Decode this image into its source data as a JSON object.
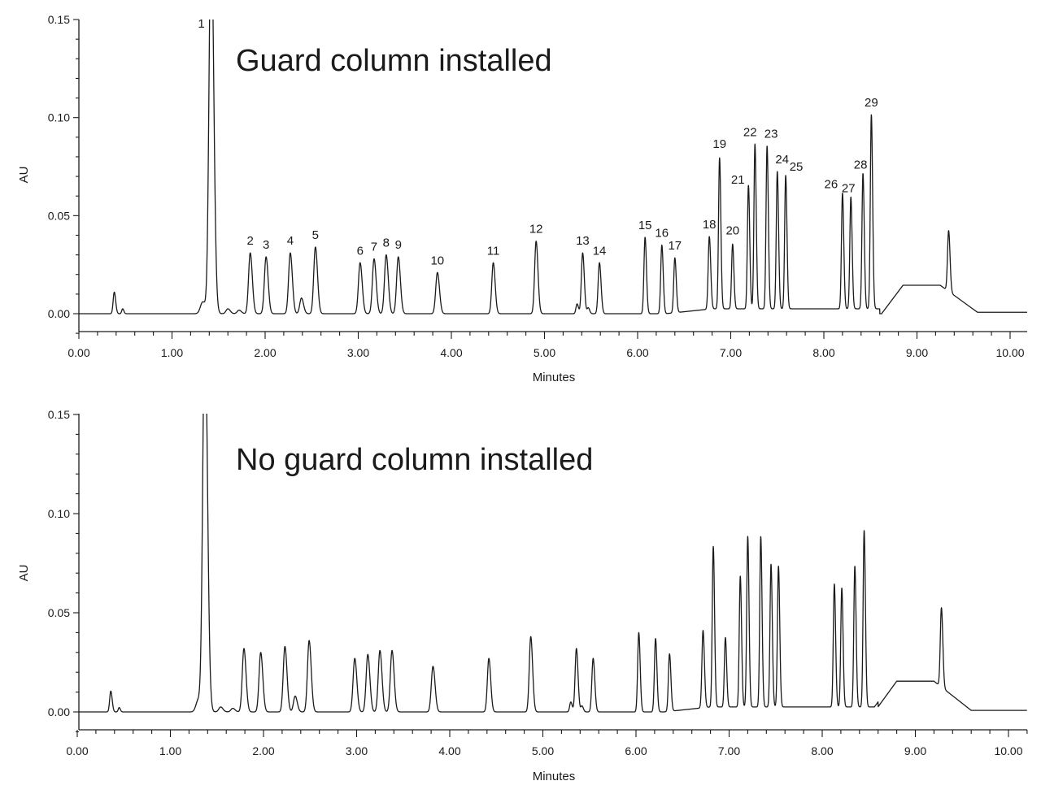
{
  "chart_data": [
    {
      "type": "line",
      "title": "Guard column installed",
      "xlabel": "Minutes",
      "ylabel": "AU",
      "xlim": [
        0,
        10.2
      ],
      "ylim": [
        -0.01,
        0.15
      ],
      "x_tick_labels": [
        "0.00",
        "1.00",
        "2.00",
        "3.00",
        "4.00",
        "5.00",
        "6.00",
        "7.00",
        "8.00",
        "9.00",
        "10.00"
      ],
      "y_tick_labels": [
        "0.00",
        "0.05",
        "0.10",
        "0.15"
      ],
      "grid": false,
      "peaks": [
        {
          "label": "",
          "rt": 0.38,
          "height": 0.011,
          "width": 0.012
        },
        {
          "label": "",
          "rt": 0.47,
          "height": 0.0025,
          "width": 0.01
        },
        {
          "label": "",
          "rt": 1.33,
          "height": 0.006,
          "width": 0.025
        },
        {
          "label": "1",
          "rt": 1.42,
          "height": 0.2,
          "width": 0.022
        },
        {
          "label": "",
          "rt": 1.6,
          "height": 0.0025,
          "width": 0.02
        },
        {
          "label": "",
          "rt": 1.72,
          "height": 0.0018,
          "width": 0.02
        },
        {
          "label": "2",
          "rt": 1.84,
          "height": 0.031,
          "width": 0.018
        },
        {
          "label": "3",
          "rt": 2.01,
          "height": 0.029,
          "width": 0.018
        },
        {
          "label": "4",
          "rt": 2.27,
          "height": 0.031,
          "width": 0.018
        },
        {
          "label": "",
          "rt": 2.39,
          "height": 0.008,
          "width": 0.018
        },
        {
          "label": "5",
          "rt": 2.54,
          "height": 0.034,
          "width": 0.018
        },
        {
          "label": "6",
          "rt": 3.02,
          "height": 0.026,
          "width": 0.018
        },
        {
          "label": "7",
          "rt": 3.17,
          "height": 0.028,
          "width": 0.018
        },
        {
          "label": "8",
          "rt": 3.3,
          "height": 0.03,
          "width": 0.018
        },
        {
          "label": "9",
          "rt": 3.43,
          "height": 0.029,
          "width": 0.018
        },
        {
          "label": "10",
          "rt": 3.85,
          "height": 0.021,
          "width": 0.018
        },
        {
          "label": "11",
          "rt": 4.45,
          "height": 0.026,
          "width": 0.016
        },
        {
          "label": "12",
          "rt": 4.91,
          "height": 0.037,
          "width": 0.016
        },
        {
          "label": "",
          "rt": 5.35,
          "height": 0.005,
          "width": 0.012
        },
        {
          "label": "13",
          "rt": 5.41,
          "height": 0.031,
          "width": 0.014
        },
        {
          "label": "",
          "rt": 5.47,
          "height": 0.003,
          "width": 0.012
        },
        {
          "label": "14",
          "rt": 5.59,
          "height": 0.026,
          "width": 0.014
        },
        {
          "label": "15",
          "rt": 6.08,
          "height": 0.039,
          "width": 0.012
        },
        {
          "label": "16",
          "rt": 6.26,
          "height": 0.035,
          "width": 0.012
        },
        {
          "label": "17",
          "rt": 6.4,
          "height": 0.028,
          "width": 0.012
        },
        {
          "label": "18",
          "rt": 6.77,
          "height": 0.037,
          "width": 0.012
        },
        {
          "label": "19",
          "rt": 6.88,
          "height": 0.077,
          "width": 0.011
        },
        {
          "label": "20",
          "rt": 7.02,
          "height": 0.033,
          "width": 0.011
        },
        {
          "label": "21",
          "rt": 7.19,
          "height": 0.063,
          "width": 0.011
        },
        {
          "label": "22",
          "rt": 7.26,
          "height": 0.084,
          "width": 0.011
        },
        {
          "label": "23",
          "rt": 7.39,
          "height": 0.083,
          "width": 0.011
        },
        {
          "label": "24",
          "rt": 7.5,
          "height": 0.07,
          "width": 0.011
        },
        {
          "label": "25",
          "rt": 7.59,
          "height": 0.068,
          "width": 0.011
        },
        {
          "label": "26",
          "rt": 8.2,
          "height": 0.059,
          "width": 0.011
        },
        {
          "label": "27",
          "rt": 8.29,
          "height": 0.057,
          "width": 0.011
        },
        {
          "label": "28",
          "rt": 8.42,
          "height": 0.069,
          "width": 0.011
        },
        {
          "label": "29",
          "rt": 8.51,
          "height": 0.099,
          "width": 0.011
        },
        {
          "label": "",
          "rt": 9.34,
          "height": 0.031,
          "width": 0.012
        }
      ]
    },
    {
      "type": "line",
      "title": "No guard column installed",
      "xlabel": "Minutes",
      "ylabel": "AU",
      "xlim": [
        0,
        10.2
      ],
      "ylim": [
        -0.01,
        0.15
      ],
      "x_tick_labels": [
        "0.00",
        "1.00",
        "2.00",
        "3.00",
        "4.00",
        "5.00",
        "6.00",
        "7.00",
        "8.00",
        "9.00",
        "10.00"
      ],
      "y_tick_labels": [
        "0.00",
        "0.05",
        "0.10",
        "0.15"
      ],
      "grid": false,
      "peaks": [
        {
          "label": "",
          "rt": 0.36,
          "height": 0.0105,
          "width": 0.012
        },
        {
          "label": "",
          "rt": 0.45,
          "height": 0.0022,
          "width": 0.01
        },
        {
          "label": "",
          "rt": 1.3,
          "height": 0.006,
          "width": 0.025
        },
        {
          "label": "",
          "rt": 1.37,
          "height": 0.2,
          "width": 0.022
        },
        {
          "label": "",
          "rt": 1.54,
          "height": 0.0025,
          "width": 0.02
        },
        {
          "label": "",
          "rt": 1.67,
          "height": 0.0018,
          "width": 0.02
        },
        {
          "label": "",
          "rt": 1.79,
          "height": 0.032,
          "width": 0.018
        },
        {
          "label": "",
          "rt": 1.97,
          "height": 0.03,
          "width": 0.018
        },
        {
          "label": "",
          "rt": 2.23,
          "height": 0.033,
          "width": 0.018
        },
        {
          "label": "",
          "rt": 2.34,
          "height": 0.008,
          "width": 0.018
        },
        {
          "label": "",
          "rt": 2.49,
          "height": 0.036,
          "width": 0.018
        },
        {
          "label": "",
          "rt": 2.98,
          "height": 0.027,
          "width": 0.018
        },
        {
          "label": "",
          "rt": 3.12,
          "height": 0.029,
          "width": 0.018
        },
        {
          "label": "",
          "rt": 3.25,
          "height": 0.031,
          "width": 0.018
        },
        {
          "label": "",
          "rt": 3.38,
          "height": 0.031,
          "width": 0.018
        },
        {
          "label": "",
          "rt": 3.82,
          "height": 0.023,
          "width": 0.018
        },
        {
          "label": "",
          "rt": 4.42,
          "height": 0.027,
          "width": 0.016
        },
        {
          "label": "",
          "rt": 4.87,
          "height": 0.038,
          "width": 0.016
        },
        {
          "label": "",
          "rt": 5.3,
          "height": 0.005,
          "width": 0.012
        },
        {
          "label": "",
          "rt": 5.36,
          "height": 0.032,
          "width": 0.014
        },
        {
          "label": "",
          "rt": 5.42,
          "height": 0.003,
          "width": 0.012
        },
        {
          "label": "",
          "rt": 5.54,
          "height": 0.027,
          "width": 0.014
        },
        {
          "label": "",
          "rt": 6.03,
          "height": 0.04,
          "width": 0.012
        },
        {
          "label": "",
          "rt": 6.21,
          "height": 0.037,
          "width": 0.012
        },
        {
          "label": "",
          "rt": 6.36,
          "height": 0.029,
          "width": 0.012
        },
        {
          "label": "",
          "rt": 6.72,
          "height": 0.039,
          "width": 0.012
        },
        {
          "label": "",
          "rt": 6.83,
          "height": 0.081,
          "width": 0.011
        },
        {
          "label": "",
          "rt": 6.96,
          "height": 0.035,
          "width": 0.011
        },
        {
          "label": "",
          "rt": 7.12,
          "height": 0.066,
          "width": 0.011
        },
        {
          "label": "",
          "rt": 7.2,
          "height": 0.086,
          "width": 0.011
        },
        {
          "label": "",
          "rt": 7.34,
          "height": 0.086,
          "width": 0.011
        },
        {
          "label": "",
          "rt": 7.45,
          "height": 0.072,
          "width": 0.011
        },
        {
          "label": "",
          "rt": 7.53,
          "height": 0.071,
          "width": 0.011
        },
        {
          "label": "",
          "rt": 8.13,
          "height": 0.062,
          "width": 0.011
        },
        {
          "label": "",
          "rt": 8.21,
          "height": 0.06,
          "width": 0.011
        },
        {
          "label": "",
          "rt": 8.35,
          "height": 0.071,
          "width": 0.011
        },
        {
          "label": "",
          "rt": 8.45,
          "height": 0.089,
          "width": 0.011
        },
        {
          "label": "",
          "rt": 9.28,
          "height": 0.04,
          "width": 0.012
        }
      ]
    }
  ]
}
